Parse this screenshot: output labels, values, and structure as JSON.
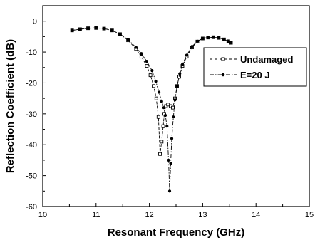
{
  "chart_data": {
    "type": "line",
    "title": "",
    "xlabel": "Resonant Frequency (GHz)",
    "ylabel": "Reflection Coefficient (dB)",
    "xlim": [
      10,
      15
    ],
    "ylim": [
      -60,
      5
    ],
    "xticks": [
      10,
      11,
      12,
      13,
      14,
      15
    ],
    "yticks": [
      0,
      -10,
      -20,
      -30,
      -40,
      -50,
      -60
    ],
    "grid": false,
    "legend_position": "right",
    "series": [
      {
        "name": "Undamaged",
        "marker": "open-square",
        "line_style": "dashed",
        "color": "#000000",
        "x": [
          10.55,
          10.7,
          10.85,
          11.0,
          11.15,
          11.3,
          11.45,
          11.6,
          11.75,
          11.85,
          11.95,
          12.02,
          12.08,
          12.13,
          12.17,
          12.2,
          12.23,
          12.26,
          12.28,
          12.31,
          12.35,
          12.4,
          12.44,
          12.48,
          12.52,
          12.56,
          12.62,
          12.7,
          12.8,
          12.9,
          13.0,
          13.1,
          13.2,
          13.3,
          13.4,
          13.48,
          13.53
        ],
        "y": [
          -3.0,
          -2.6,
          -2.3,
          -2.2,
          -2.4,
          -3.0,
          -4.2,
          -6.2,
          -9.0,
          -11.5,
          -14.5,
          -17.5,
          -21.0,
          -25.0,
          -31.0,
          -43.0,
          -39.0,
          -34.0,
          -30.0,
          -27.5,
          -27.0,
          -27.5,
          -28.0,
          -25.0,
          -21.0,
          -18.0,
          -14.5,
          -11.5,
          -8.5,
          -6.6,
          -5.6,
          -5.3,
          -5.2,
          -5.4,
          -5.9,
          -6.5,
          -7.0
        ]
      },
      {
        "name": "E=20 J",
        "marker": "filled-circle",
        "line_style": "dash-dot",
        "color": "#000000",
        "x": [
          10.55,
          10.7,
          10.85,
          11.0,
          11.15,
          11.3,
          11.45,
          11.6,
          11.75,
          11.85,
          11.95,
          12.05,
          12.12,
          12.18,
          12.23,
          12.27,
          12.3,
          12.33,
          12.36,
          12.38,
          12.4,
          12.42,
          12.45,
          12.48,
          12.52,
          12.57,
          12.62,
          12.7,
          12.8,
          12.9,
          13.0,
          13.1,
          13.2,
          13.3,
          13.4,
          13.48,
          13.53
        ],
        "y": [
          -3.0,
          -2.6,
          -2.3,
          -2.2,
          -2.4,
          -3.0,
          -4.2,
          -6.0,
          -8.5,
          -10.5,
          -13.0,
          -16.0,
          -19.5,
          -23.0,
          -26.0,
          -28.0,
          -30.5,
          -34.0,
          -45.0,
          -55.0,
          -46.0,
          -38.0,
          -31.0,
          -25.5,
          -21.0,
          -17.0,
          -14.0,
          -11.0,
          -8.2,
          -6.5,
          -5.6,
          -5.3,
          -5.2,
          -5.4,
          -5.9,
          -6.5,
          -7.0
        ]
      }
    ]
  }
}
